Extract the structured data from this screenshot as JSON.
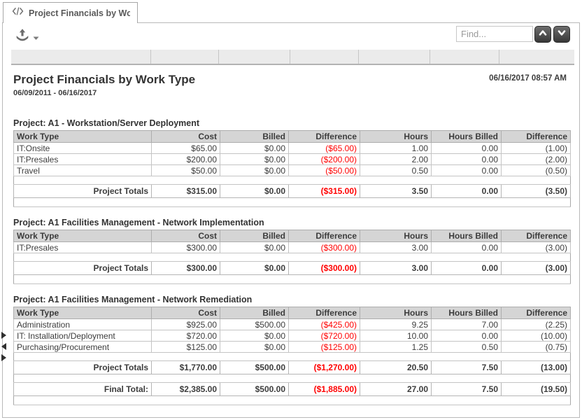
{
  "tab": {
    "title": "Project Financials by Work T..."
  },
  "toolbar": {
    "find_placeholder": "Find..."
  },
  "report": {
    "title": "Project Financials by Work Type",
    "date_range": "06/09/2011 - 06/16/2017",
    "generated_at": "06/16/2017 08:57 AM"
  },
  "table": {
    "columns": [
      "Work Type",
      "Cost",
      "Billed",
      "Difference",
      "Hours",
      "Hours Billed",
      "Difference"
    ],
    "sections": [
      {
        "title": "Project: A1 - Workstation/Server Deployment",
        "rows": [
          [
            "IT:Onsite",
            "$65.00",
            "$0.00",
            "($65.00)",
            "1.00",
            "0.00",
            "(1.00)"
          ],
          [
            "IT:Presales",
            "$200.00",
            "$0.00",
            "($200.00)",
            "2.00",
            "0.00",
            "(2.00)"
          ],
          [
            "Travel",
            "$50.00",
            "$0.00",
            "($50.00)",
            "0.50",
            "0.00",
            "(0.50)"
          ]
        ],
        "totals": [
          "Project Totals",
          "$315.00",
          "$0.00",
          "($315.00)",
          "3.50",
          "0.00",
          "(3.50)"
        ]
      },
      {
        "title": "Project: A1 Facilities Management - Network Implementation",
        "rows": [
          [
            "IT:Presales",
            "$300.00",
            "$0.00",
            "($300.00)",
            "3.00",
            "0.00",
            "(3.00)"
          ]
        ],
        "totals": [
          "Project Totals",
          "$300.00",
          "$0.00",
          "($300.00)",
          "3.00",
          "0.00",
          "(3.00)"
        ]
      },
      {
        "title": "Project: A1 Facilities Management - Network Remediation",
        "rows": [
          [
            "Administration",
            "$925.00",
            "$500.00",
            "($425.00)",
            "9.25",
            "7.00",
            "(2.25)"
          ],
          [
            "IT: Installation/Deployment",
            "$720.00",
            "$0.00",
            "($720.00)",
            "10.00",
            "0.00",
            "(10.00)"
          ],
          [
            "Purchasing/Procurement",
            "$125.00",
            "$0.00",
            "($125.00)",
            "1.25",
            "0.50",
            "(0.75)"
          ]
        ],
        "totals": [
          "Project Totals",
          "$1,770.00",
          "$500.00",
          "($1,270.00)",
          "20.50",
          "7.50",
          "(13.00)"
        ],
        "final_total": [
          "Final Total:",
          "$2,385.00",
          "$500.00",
          "($1,885.00)",
          "27.00",
          "7.50",
          "(19.50)"
        ]
      }
    ]
  },
  "colors": {
    "negative": "#ff0000",
    "header_bg": "#d5d5d5"
  }
}
